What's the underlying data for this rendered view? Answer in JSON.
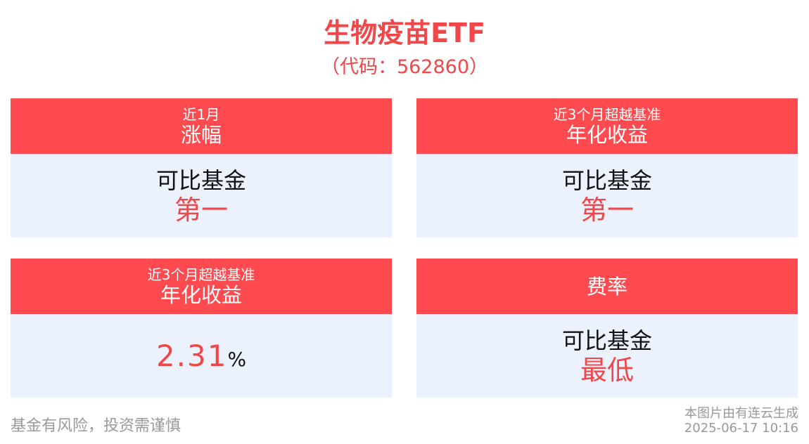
{
  "header": {
    "title": "生物疫苗ETF",
    "subtitle": "（代码：562860）"
  },
  "cards": [
    {
      "label_top": "近1月",
      "label_main": "涨幅",
      "line1": "可比基金",
      "line2": "第一"
    },
    {
      "label_top": "近3个月超越基准",
      "label_main": "年化收益",
      "line1": "可比基金",
      "line2": "第一"
    },
    {
      "label_top": "近3个月超越基准",
      "label_main": "年化收益",
      "value": 2.31,
      "unit": "%"
    },
    {
      "label_main": "费率",
      "line1": "可比基金",
      "line2": "最低"
    }
  ],
  "footer": {
    "disclaimer": "基金有风险，投资需谨慎",
    "source": "本图片由有连云生成",
    "timestamp": "2025-06-17 10:16"
  }
}
